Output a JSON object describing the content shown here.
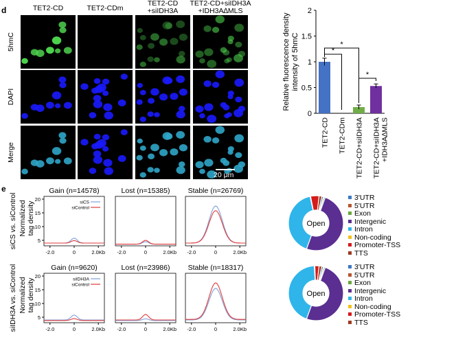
{
  "panel_d": {
    "letter": "d",
    "columns": [
      "TET2-CD",
      "TET2-CDm",
      "TET2-CD\n+siIDH3A",
      "TET2-CD+siIDH3A\n+IDH3A∆MLS"
    ],
    "rows": [
      "5hmC",
      "DAPI",
      "Merge"
    ],
    "scale_bar": "20 μm",
    "colors": {
      "5hmC": "#4dd14d",
      "DAPI": "#1a1aff",
      "Merge": "#2fa5c8"
    }
  },
  "panel_e": {
    "letter": "e",
    "row_labels": [
      "siCS vs. siControl",
      "siIDH3A vs. siControl"
    ],
    "y_label": "Normalized\ntag density",
    "pie_center": "Open",
    "legend": [
      {
        "label": "3'UTR",
        "color": "#3b78c6"
      },
      {
        "label": "5'UTR",
        "color": "#b5562e"
      },
      {
        "label": "Exon",
        "color": "#6aa83c"
      },
      {
        "label": "Intergenic",
        "color": "#5b2e92"
      },
      {
        "label": "Intron",
        "color": "#2fb5ea"
      },
      {
        "label": "Non-coding",
        "color": "#f2c21a"
      },
      {
        "label": "Promoter-TSS",
        "color": "#d51b1b"
      },
      {
        "label": "TTS",
        "color": "#9e3a20"
      }
    ]
  },
  "chart_data": [
    {
      "type": "bar",
      "categories": [
        "TET2-CD",
        "TET2-CDm",
        "TET2-CD+siIDH3A",
        "TET2-CD+siIDH3A\n+IDH3A∆MLS"
      ],
      "values": [
        1.0,
        0.0,
        0.12,
        0.53
      ],
      "errors": [
        0.07,
        0.0,
        0.04,
        0.04
      ],
      "colors": [
        "#4472c4",
        "#4472c4",
        "#70ad47",
        "#7030a0"
      ],
      "ylabel": "Relative fluorescence density\nintensity of 5hmC",
      "ylim": [
        0,
        2
      ],
      "yticks": [
        "0",
        "0.5",
        "1",
        "1.5",
        "2"
      ],
      "significance": [
        "*",
        "*",
        "*"
      ]
    },
    {
      "type": "line",
      "title": "Gain (n=14578)",
      "xticks": [
        "-2.0",
        "0",
        "2.0Kb"
      ],
      "yticks": [
        "5",
        "10",
        "15",
        "20"
      ],
      "ylim": [
        3,
        21
      ],
      "series": [
        {
          "name": "siCS",
          "color": "#7f9fd8",
          "peak": 5.8,
          "base": 4.0
        },
        {
          "name": "siControl",
          "color": "#e03a3a",
          "peak": 4.9,
          "base": 4.0
        }
      ]
    },
    {
      "type": "line",
      "title": "Lost (n=15385)",
      "series": [
        {
          "name": "siCS",
          "color": "#7f9fd8",
          "peak": 4.5,
          "base": 3.6
        },
        {
          "name": "siControl",
          "color": "#e03a3a",
          "peak": 5.0,
          "base": 3.6
        }
      ]
    },
    {
      "type": "line",
      "title": "Stable (n=26769)",
      "series": [
        {
          "name": "siCS",
          "color": "#7f9fd8",
          "peak": 17.5,
          "base": 4.0
        },
        {
          "name": "siControl",
          "color": "#e03a3a",
          "peak": 15.8,
          "base": 4.0
        }
      ]
    },
    {
      "type": "line",
      "title": "Gain (n=9620)",
      "xticks": [
        "-2.0",
        "0",
        "2.0Kb"
      ],
      "yticks": [
        "5",
        "10",
        "15",
        "20"
      ],
      "ylim": [
        3,
        21
      ],
      "series": [
        {
          "name": "siIDH3A",
          "color": "#7f9fd8",
          "peak": 5.8,
          "base": 4.0
        },
        {
          "name": "siControl",
          "color": "#e03a3a",
          "peak": 4.5,
          "base": 3.8
        }
      ]
    },
    {
      "type": "line",
      "title": "Lost (n=23986)",
      "series": [
        {
          "name": "siIDH3A",
          "color": "#7f9fd8",
          "peak": 4.4,
          "base": 3.8
        },
        {
          "name": "siControl",
          "color": "#e03a3a",
          "peak": 6.0,
          "base": 4.0
        }
      ]
    },
    {
      "type": "line",
      "title": "Stable (n=18317)",
      "series": [
        {
          "name": "siIDH3A",
          "color": "#7f9fd8",
          "peak": 15.5,
          "base": 4.0
        },
        {
          "name": "siControl",
          "color": "#e03a3a",
          "peak": 17.5,
          "base": 4.2
        }
      ]
    },
    {
      "type": "pie",
      "categories": [
        "3'UTR",
        "5'UTR",
        "Exon",
        "Intergenic",
        "Intron",
        "Non-coding",
        "Promoter-TSS",
        "TTS"
      ],
      "values": [
        1.0,
        0.3,
        0.8,
        50.0,
        41.0,
        0.3,
        5.0,
        1.6
      ]
    },
    {
      "type": "pie",
      "categories": [
        "3'UTR",
        "5'UTR",
        "Exon",
        "Intergenic",
        "Intron",
        "Non-coding",
        "Promoter-TSS",
        "TTS"
      ],
      "values": [
        1.0,
        0.3,
        0.8,
        50.0,
        43.5,
        0.3,
        2.5,
        1.6
      ]
    }
  ]
}
